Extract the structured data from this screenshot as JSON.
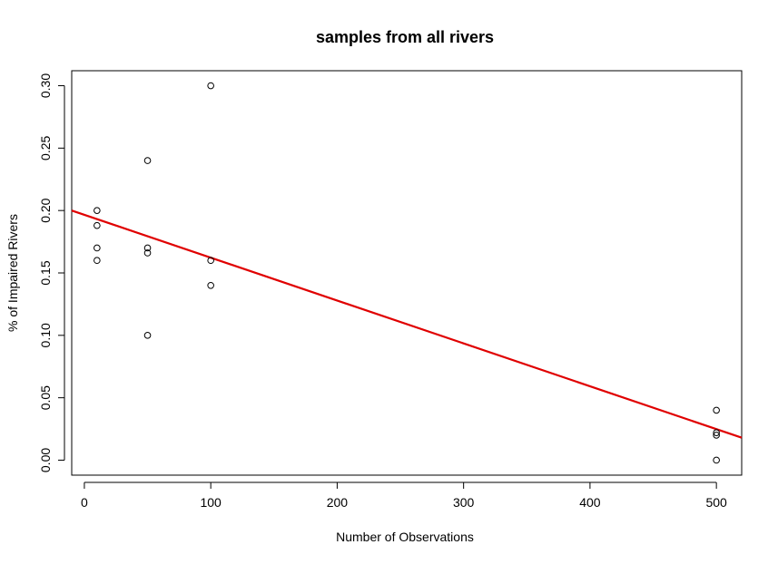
{
  "chart_data": {
    "type": "scatter",
    "title": "samples from all rivers",
    "xlabel": "Number of Observations",
    "ylabel": "% of Impaired Rivers",
    "xlim": [
      -10,
      520
    ],
    "ylim": [
      -0.012,
      0.312
    ],
    "x_ticks": [
      0,
      100,
      200,
      300,
      400,
      500
    ],
    "x_tick_labels": [
      "0",
      "100",
      "200",
      "300",
      "400",
      "500"
    ],
    "y_ticks": [
      0.0,
      0.05,
      0.1,
      0.15,
      0.2,
      0.25,
      0.3
    ],
    "y_tick_labels": [
      "0.00",
      "0.05",
      "0.10",
      "0.15",
      "0.20",
      "0.25",
      "0.30"
    ],
    "grid": false,
    "points": [
      {
        "x": 10,
        "y": 0.2
      },
      {
        "x": 10,
        "y": 0.188
      },
      {
        "x": 10,
        "y": 0.17
      },
      {
        "x": 10,
        "y": 0.16
      },
      {
        "x": 50,
        "y": 0.24
      },
      {
        "x": 50,
        "y": 0.17
      },
      {
        "x": 50,
        "y": 0.166
      },
      {
        "x": 50,
        "y": 0.1
      },
      {
        "x": 100,
        "y": 0.3
      },
      {
        "x": 100,
        "y": 0.16
      },
      {
        "x": 100,
        "y": 0.14
      },
      {
        "x": 500,
        "y": 0.04
      },
      {
        "x": 500,
        "y": 0.022
      },
      {
        "x": 500,
        "y": 0.02
      },
      {
        "x": 500,
        "y": 0.0
      }
    ],
    "fit_line": {
      "color": "#e00000",
      "x": [
        -10,
        520
      ],
      "y": [
        0.2,
        0.018
      ]
    }
  }
}
